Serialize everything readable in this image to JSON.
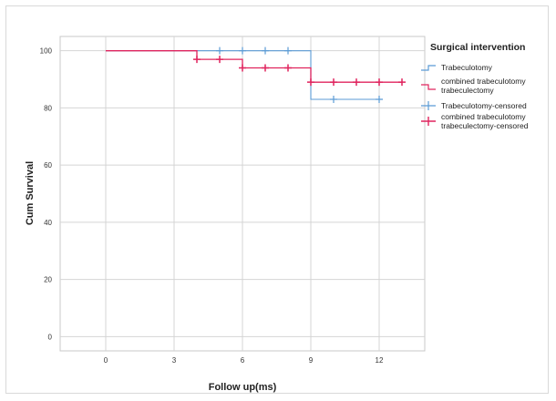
{
  "chart_data": {
    "type": "line",
    "xlabel": "Follow up(ms)",
    "ylabel": "Cum Survival",
    "xlim": [
      -2,
      14
    ],
    "ylim": [
      -5,
      105
    ],
    "x_ticks": [
      0,
      3,
      6,
      9,
      12
    ],
    "y_ticks": [
      0,
      20,
      40,
      60,
      80,
      100
    ],
    "grid": true,
    "legend_title": "Surgical intervention",
    "legend_position": "right",
    "series": [
      {
        "name": "Trabeculotomy",
        "color": "#5b9bd5",
        "steps": [
          [
            0,
            100
          ],
          [
            9,
            100
          ],
          [
            9,
            83
          ],
          [
            12,
            83
          ]
        ],
        "censored_name": "Trabeculotomy-censored",
        "censored": [
          [
            5,
            100
          ],
          [
            6,
            100
          ],
          [
            7,
            100
          ],
          [
            8,
            100
          ],
          [
            10,
            83
          ],
          [
            12,
            83
          ]
        ]
      },
      {
        "name": "combined trabeculotomy trabeculectomy",
        "name_lines": [
          "combined trabeculotomy",
          "trabeculectomy"
        ],
        "color": "#e0245e",
        "steps": [
          [
            0,
            100
          ],
          [
            4,
            100
          ],
          [
            4,
            97
          ],
          [
            6,
            97
          ],
          [
            6,
            94
          ],
          [
            9,
            94
          ],
          [
            9,
            89
          ],
          [
            13,
            89
          ]
        ],
        "censored_name": "combined trabeculotomy trabeculectomy-censored",
        "censored_name_lines": [
          "combined trabeculotomy",
          "trabeculectomy-censored"
        ],
        "censored": [
          [
            4,
            97
          ],
          [
            5,
            97
          ],
          [
            6,
            94
          ],
          [
            7,
            94
          ],
          [
            8,
            94
          ],
          [
            9,
            89
          ],
          [
            10,
            89
          ],
          [
            11,
            89
          ],
          [
            12,
            89
          ],
          [
            13,
            89
          ]
        ]
      }
    ]
  }
}
